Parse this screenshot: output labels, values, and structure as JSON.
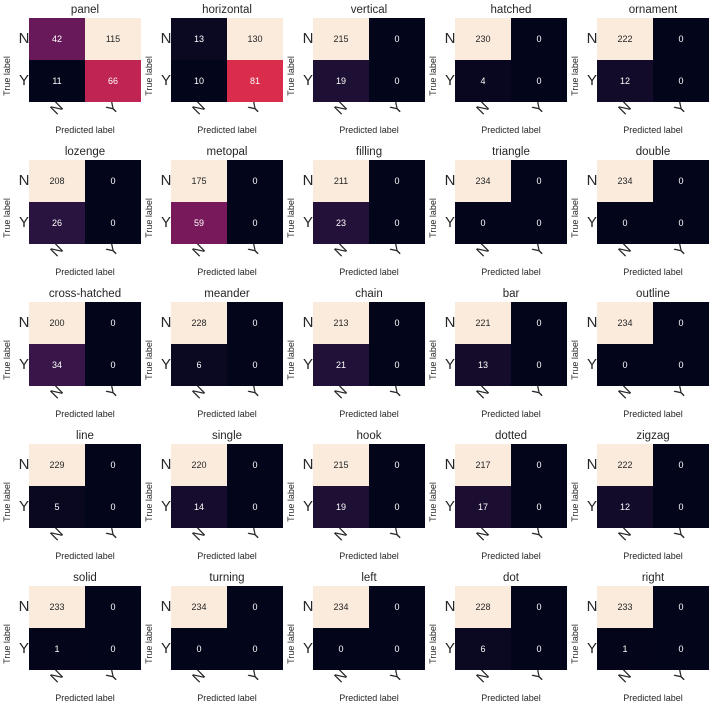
{
  "tick_labels": [
    "N",
    "Y"
  ],
  "ylabel": "True label",
  "xlabel": "Predicted label",
  "chart_data": [
    {
      "type": "heatmap",
      "title": "panel",
      "matrix": [
        [
          42,
          115
        ],
        [
          11,
          66
        ]
      ]
    },
    {
      "type": "heatmap",
      "title": "horizontal",
      "matrix": [
        [
          13,
          130
        ],
        [
          10,
          81
        ]
      ]
    },
    {
      "type": "heatmap",
      "title": "vertical",
      "matrix": [
        [
          215,
          0
        ],
        [
          19,
          0
        ]
      ]
    },
    {
      "type": "heatmap",
      "title": "hatched",
      "matrix": [
        [
          230,
          0
        ],
        [
          4,
          0
        ]
      ]
    },
    {
      "type": "heatmap",
      "title": "ornament",
      "matrix": [
        [
          222,
          0
        ],
        [
          12,
          0
        ]
      ]
    },
    {
      "type": "heatmap",
      "title": "lozenge",
      "matrix": [
        [
          208,
          0
        ],
        [
          26,
          0
        ]
      ]
    },
    {
      "type": "heatmap",
      "title": "metopal",
      "matrix": [
        [
          175,
          0
        ],
        [
          59,
          0
        ]
      ]
    },
    {
      "type": "heatmap",
      "title": "filling",
      "matrix": [
        [
          211,
          0
        ],
        [
          23,
          0
        ]
      ]
    },
    {
      "type": "heatmap",
      "title": "triangle",
      "matrix": [
        [
          234,
          0
        ],
        [
          0,
          0
        ]
      ]
    },
    {
      "type": "heatmap",
      "title": "double",
      "matrix": [
        [
          234,
          0
        ],
        [
          0,
          0
        ]
      ]
    },
    {
      "type": "heatmap",
      "title": "cross-hatched",
      "matrix": [
        [
          200,
          0
        ],
        [
          34,
          0
        ]
      ]
    },
    {
      "type": "heatmap",
      "title": "meander",
      "matrix": [
        [
          228,
          0
        ],
        [
          6,
          0
        ]
      ]
    },
    {
      "type": "heatmap",
      "title": "chain",
      "matrix": [
        [
          213,
          0
        ],
        [
          21,
          0
        ]
      ]
    },
    {
      "type": "heatmap",
      "title": "bar",
      "matrix": [
        [
          221,
          0
        ],
        [
          13,
          0
        ]
      ]
    },
    {
      "type": "heatmap",
      "title": "outline",
      "matrix": [
        [
          234,
          0
        ],
        [
          0,
          0
        ]
      ]
    },
    {
      "type": "heatmap",
      "title": "line",
      "matrix": [
        [
          229,
          0
        ],
        [
          5,
          0
        ]
      ]
    },
    {
      "type": "heatmap",
      "title": "single",
      "matrix": [
        [
          220,
          0
        ],
        [
          14,
          0
        ]
      ]
    },
    {
      "type": "heatmap",
      "title": "hook",
      "matrix": [
        [
          215,
          0
        ],
        [
          19,
          0
        ]
      ]
    },
    {
      "type": "heatmap",
      "title": "dotted",
      "matrix": [
        [
          217,
          0
        ],
        [
          17,
          0
        ]
      ]
    },
    {
      "type": "heatmap",
      "title": "zigzag",
      "matrix": [
        [
          222,
          0
        ],
        [
          12,
          0
        ]
      ]
    },
    {
      "type": "heatmap",
      "title": "solid",
      "matrix": [
        [
          233,
          0
        ],
        [
          1,
          0
        ]
      ]
    },
    {
      "type": "heatmap",
      "title": "turning",
      "matrix": [
        [
          234,
          0
        ],
        [
          0,
          0
        ]
      ]
    },
    {
      "type": "heatmap",
      "title": "left",
      "matrix": [
        [
          234,
          0
        ],
        [
          0,
          0
        ]
      ]
    },
    {
      "type": "heatmap",
      "title": "dot",
      "matrix": [
        [
          228,
          0
        ],
        [
          6,
          0
        ]
      ]
    },
    {
      "type": "heatmap",
      "title": "right",
      "matrix": [
        [
          233,
          0
        ],
        [
          1,
          0
        ]
      ]
    }
  ]
}
